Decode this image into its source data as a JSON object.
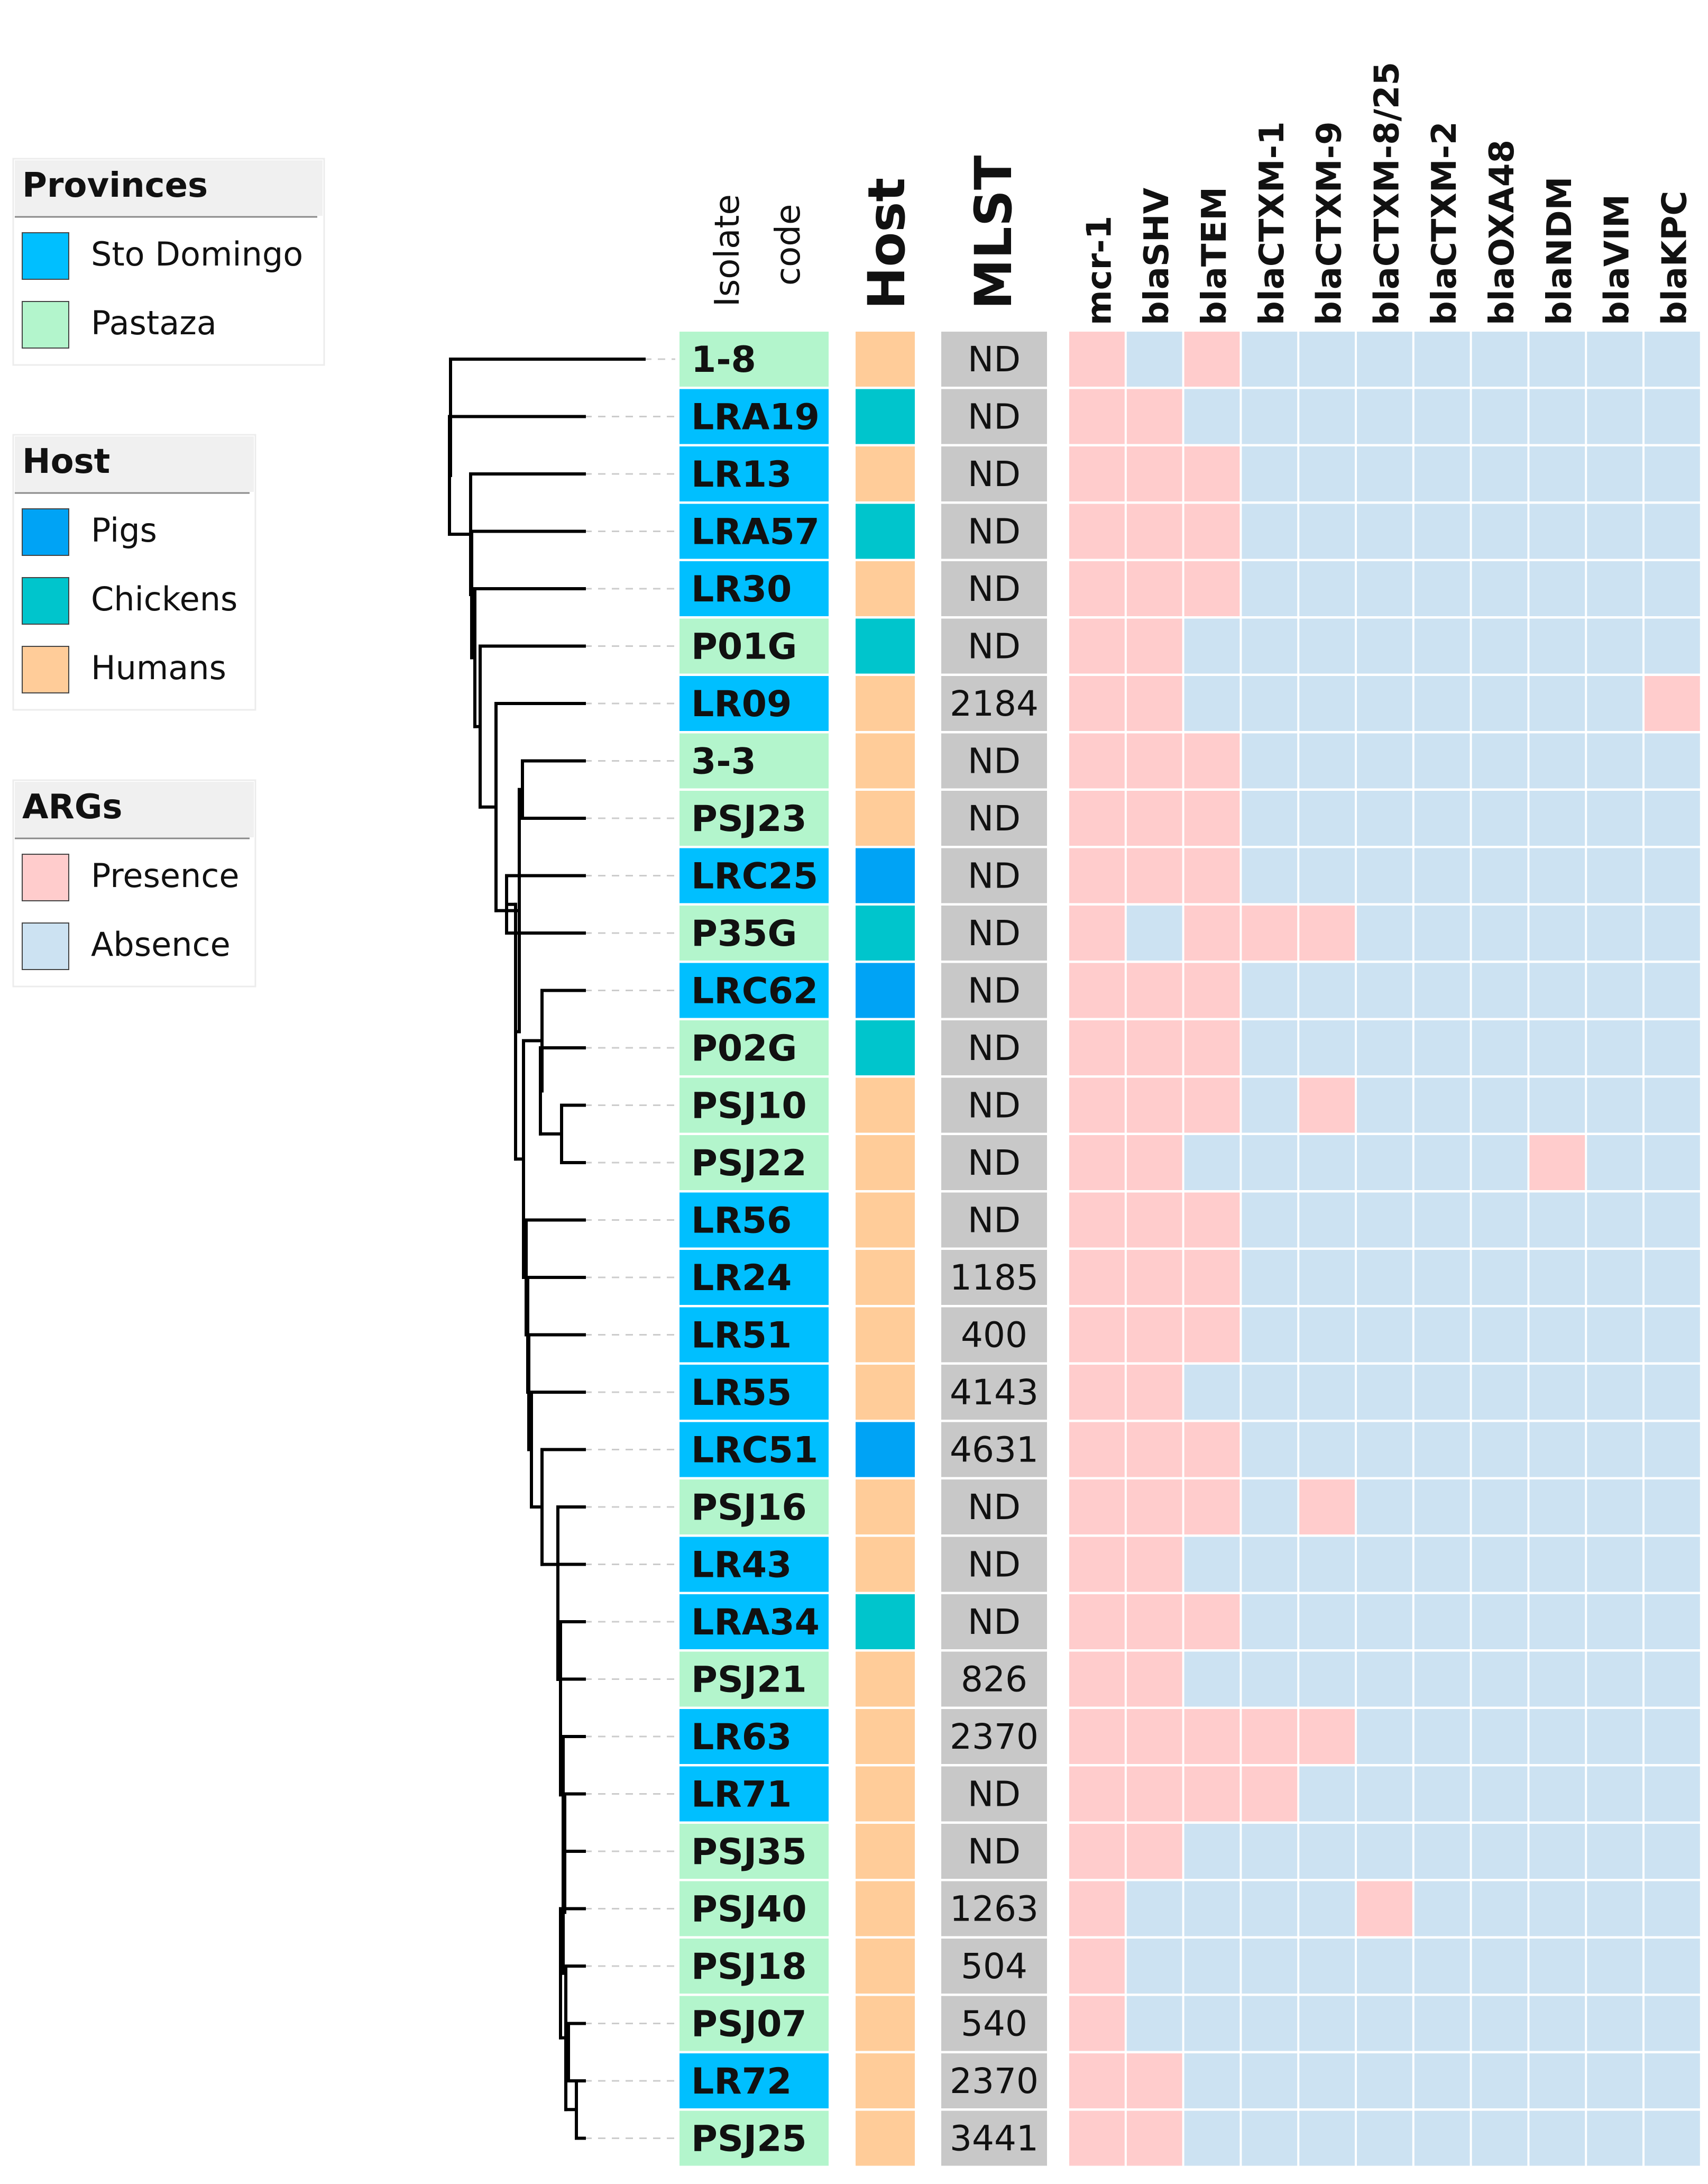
{
  "legends": {
    "provinces": {
      "title": "Provinces",
      "items": [
        {
          "label": "Sto Domingo",
          "color": "#00BFFF"
        },
        {
          "label": "Pastaza",
          "color": "#B3F5CC"
        }
      ]
    },
    "host": {
      "title": "Host",
      "items": [
        {
          "label": "Pigs",
          "color": "#00A3F5"
        },
        {
          "label": "Chickens",
          "color": "#00C5CC"
        },
        {
          "label": "Humans",
          "color": "#FFCC99"
        }
      ]
    },
    "args": {
      "title": "ARGs",
      "items": [
        {
          "label": "Presence",
          "color": "#FFCCCC"
        },
        {
          "label": "Absence",
          "color": "#CCE2F2"
        }
      ]
    }
  },
  "headers": {
    "isolate_line1": "Isolate",
    "isolate_line2": "code",
    "host": "Host",
    "mlst": "MLST"
  },
  "chart_data": {
    "type": "heatmap",
    "genes": [
      "mcr-1",
      "blaSHV",
      "blaTEM",
      "blaCTXM-1",
      "blaCTXM-9",
      "blaCTXM-8/25",
      "blaCTXM-2",
      "blaOXA48",
      "blaNDM",
      "blaVIM",
      "blaKPC"
    ],
    "isolates": [
      {
        "code": "1-8",
        "province": "Pastaza",
        "host": "Humans",
        "mlst": "ND",
        "args": [
          1,
          0,
          1,
          0,
          0,
          0,
          0,
          0,
          0,
          0,
          0
        ]
      },
      {
        "code": "LRA19",
        "province": "Sto Domingo",
        "host": "Chickens",
        "mlst": "ND",
        "args": [
          1,
          1,
          0,
          0,
          0,
          0,
          0,
          0,
          0,
          0,
          0
        ]
      },
      {
        "code": "LR13",
        "province": "Sto Domingo",
        "host": "Humans",
        "mlst": "ND",
        "args": [
          1,
          1,
          1,
          0,
          0,
          0,
          0,
          0,
          0,
          0,
          0
        ]
      },
      {
        "code": "LRA57",
        "province": "Sto Domingo",
        "host": "Chickens",
        "mlst": "ND",
        "args": [
          1,
          1,
          1,
          0,
          0,
          0,
          0,
          0,
          0,
          0,
          0
        ]
      },
      {
        "code": "LR30",
        "province": "Sto Domingo",
        "host": "Humans",
        "mlst": "ND",
        "args": [
          1,
          1,
          1,
          0,
          0,
          0,
          0,
          0,
          0,
          0,
          0
        ]
      },
      {
        "code": "P01G",
        "province": "Pastaza",
        "host": "Chickens",
        "mlst": "ND",
        "args": [
          1,
          1,
          0,
          0,
          0,
          0,
          0,
          0,
          0,
          0,
          0
        ]
      },
      {
        "code": "LR09",
        "province": "Sto Domingo",
        "host": "Humans",
        "mlst": "2184",
        "args": [
          1,
          1,
          0,
          0,
          0,
          0,
          0,
          0,
          0,
          0,
          1
        ]
      },
      {
        "code": "3-3",
        "province": "Pastaza",
        "host": "Humans",
        "mlst": "ND",
        "args": [
          1,
          1,
          1,
          0,
          0,
          0,
          0,
          0,
          0,
          0,
          0
        ]
      },
      {
        "code": "PSJ23",
        "province": "Pastaza",
        "host": "Humans",
        "mlst": "ND",
        "args": [
          1,
          1,
          1,
          0,
          0,
          0,
          0,
          0,
          0,
          0,
          0
        ]
      },
      {
        "code": "LRC25",
        "province": "Sto Domingo",
        "host": "Pigs",
        "mlst": "ND",
        "args": [
          1,
          1,
          1,
          0,
          0,
          0,
          0,
          0,
          0,
          0,
          0
        ]
      },
      {
        "code": "P35G",
        "province": "Pastaza",
        "host": "Chickens",
        "mlst": "ND",
        "args": [
          1,
          0,
          1,
          1,
          1,
          0,
          0,
          0,
          0,
          0,
          0
        ]
      },
      {
        "code": "LRC62",
        "province": "Sto Domingo",
        "host": "Pigs",
        "mlst": "ND",
        "args": [
          1,
          1,
          1,
          0,
          0,
          0,
          0,
          0,
          0,
          0,
          0
        ]
      },
      {
        "code": "P02G",
        "province": "Pastaza",
        "host": "Chickens",
        "mlst": "ND",
        "args": [
          1,
          1,
          1,
          0,
          0,
          0,
          0,
          0,
          0,
          0,
          0
        ]
      },
      {
        "code": "PSJ10",
        "province": "Pastaza",
        "host": "Humans",
        "mlst": "ND",
        "args": [
          1,
          1,
          1,
          0,
          1,
          0,
          0,
          0,
          0,
          0,
          0
        ]
      },
      {
        "code": "PSJ22",
        "province": "Pastaza",
        "host": "Humans",
        "mlst": "ND",
        "args": [
          1,
          1,
          0,
          0,
          0,
          0,
          0,
          0,
          1,
          0,
          0
        ]
      },
      {
        "code": "LR56",
        "province": "Sto Domingo",
        "host": "Humans",
        "mlst": "ND",
        "args": [
          1,
          1,
          1,
          0,
          0,
          0,
          0,
          0,
          0,
          0,
          0
        ]
      },
      {
        "code": "LR24",
        "province": "Sto Domingo",
        "host": "Humans",
        "mlst": "1185",
        "args": [
          1,
          1,
          1,
          0,
          0,
          0,
          0,
          0,
          0,
          0,
          0
        ]
      },
      {
        "code": "LR51",
        "province": "Sto Domingo",
        "host": "Humans",
        "mlst": "400",
        "args": [
          1,
          1,
          1,
          0,
          0,
          0,
          0,
          0,
          0,
          0,
          0
        ]
      },
      {
        "code": "LR55",
        "province": "Sto Domingo",
        "host": "Humans",
        "mlst": "4143",
        "args": [
          1,
          1,
          0,
          0,
          0,
          0,
          0,
          0,
          0,
          0,
          0
        ]
      },
      {
        "code": "LRC51",
        "province": "Sto Domingo",
        "host": "Pigs",
        "mlst": "4631",
        "args": [
          1,
          1,
          1,
          0,
          0,
          0,
          0,
          0,
          0,
          0,
          0
        ]
      },
      {
        "code": "PSJ16",
        "province": "Pastaza",
        "host": "Humans",
        "mlst": "ND",
        "args": [
          1,
          1,
          1,
          0,
          1,
          0,
          0,
          0,
          0,
          0,
          0
        ]
      },
      {
        "code": "LR43",
        "province": "Sto Domingo",
        "host": "Humans",
        "mlst": "ND",
        "args": [
          1,
          1,
          0,
          0,
          0,
          0,
          0,
          0,
          0,
          0,
          0
        ]
      },
      {
        "code": "LRA34",
        "province": "Sto Domingo",
        "host": "Chickens",
        "mlst": "ND",
        "args": [
          1,
          1,
          1,
          0,
          0,
          0,
          0,
          0,
          0,
          0,
          0
        ]
      },
      {
        "code": "PSJ21",
        "province": "Pastaza",
        "host": "Humans",
        "mlst": "826",
        "args": [
          1,
          1,
          0,
          0,
          0,
          0,
          0,
          0,
          0,
          0,
          0
        ]
      },
      {
        "code": "LR63",
        "province": "Sto Domingo",
        "host": "Humans",
        "mlst": "2370",
        "args": [
          1,
          1,
          1,
          1,
          1,
          0,
          0,
          0,
          0,
          0,
          0
        ]
      },
      {
        "code": "LR71",
        "province": "Sto Domingo",
        "host": "Humans",
        "mlst": "ND",
        "args": [
          1,
          1,
          1,
          1,
          0,
          0,
          0,
          0,
          0,
          0,
          0
        ]
      },
      {
        "code": "PSJ35",
        "province": "Pastaza",
        "host": "Humans",
        "mlst": "ND",
        "args": [
          1,
          1,
          0,
          0,
          0,
          0,
          0,
          0,
          0,
          0,
          0
        ]
      },
      {
        "code": "PSJ40",
        "province": "Pastaza",
        "host": "Humans",
        "mlst": "1263",
        "args": [
          1,
          0,
          0,
          0,
          0,
          1,
          0,
          0,
          0,
          0,
          0
        ]
      },
      {
        "code": "PSJ18",
        "province": "Pastaza",
        "host": "Humans",
        "mlst": "504",
        "args": [
          1,
          0,
          0,
          0,
          0,
          0,
          0,
          0,
          0,
          0,
          0
        ]
      },
      {
        "code": "PSJ07",
        "province": "Pastaza",
        "host": "Humans",
        "mlst": "540",
        "args": [
          1,
          0,
          0,
          0,
          0,
          0,
          0,
          0,
          0,
          0,
          0
        ]
      },
      {
        "code": "LR72",
        "province": "Sto Domingo",
        "host": "Humans",
        "mlst": "2370",
        "args": [
          1,
          1,
          0,
          0,
          0,
          0,
          0,
          0,
          0,
          0,
          0
        ]
      },
      {
        "code": "PSJ25",
        "province": "Pastaza",
        "host": "Humans",
        "mlst": "3441",
        "args": [
          1,
          1,
          0,
          0,
          0,
          0,
          0,
          0,
          0,
          0,
          0
        ]
      }
    ],
    "colors": {
      "Sto Domingo": "#00BFFF",
      "Pastaza": "#B3F5CC",
      "Pigs": "#00A3F5",
      "Chickens": "#00C5CC",
      "Humans": "#FFCC99",
      "presence": "#FFCCCC",
      "absence": "#CCE2F2",
      "mlst_bg": "#C8C8C8",
      "legend_header_bg": "#F0F0F0"
    }
  }
}
